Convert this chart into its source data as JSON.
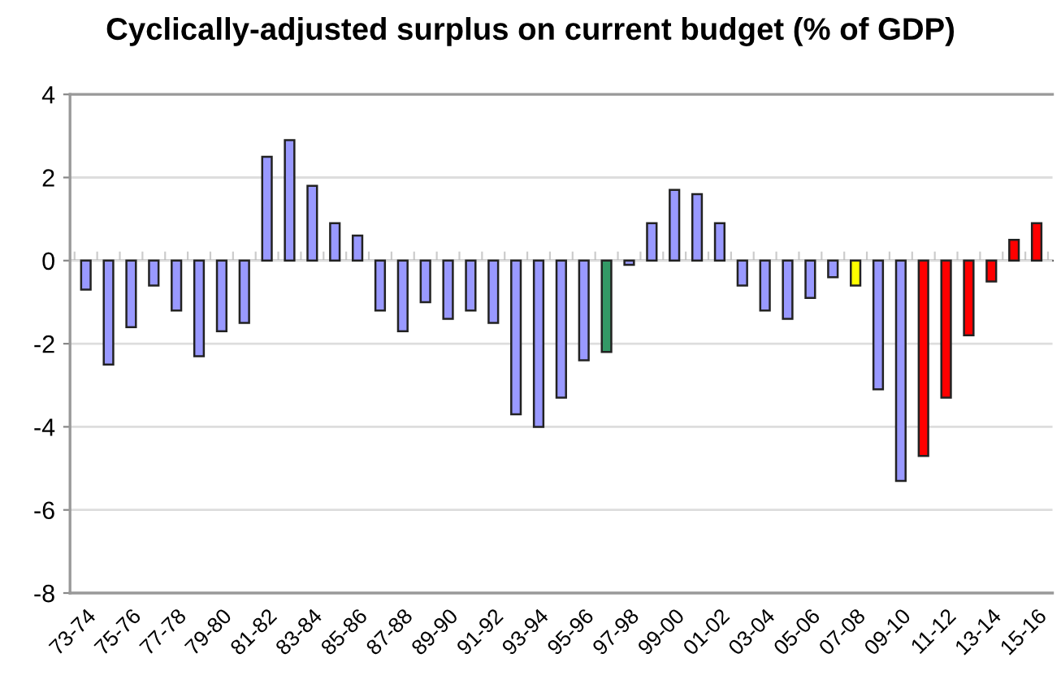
{
  "chart_data": {
    "type": "bar",
    "title": "Cyclically-adjusted surplus on current budget (% of GDP)",
    "categories": [
      "73-74",
      null,
      "75-76",
      null,
      "77-78",
      null,
      "79-80",
      null,
      "81-82",
      null,
      "83-84",
      null,
      "85-86",
      null,
      "87-88",
      null,
      "89-90",
      null,
      "91-92",
      null,
      "93-94",
      null,
      "95-96",
      null,
      "97-98",
      null,
      "99-00",
      null,
      "01-02",
      null,
      "03-04",
      null,
      "05-06",
      null,
      "07-08",
      null,
      "09-10",
      null,
      "11-12",
      null,
      "13-14",
      null,
      "15-16"
    ],
    "values": [
      -0.7,
      -2.5,
      -1.6,
      -0.6,
      -1.2,
      -2.3,
      -1.7,
      -1.5,
      2.5,
      2.9,
      1.8,
      0.9,
      0.6,
      -1.2,
      -1.7,
      -1.0,
      -1.4,
      -1.2,
      -1.5,
      -3.7,
      -4.0,
      -3.3,
      -2.4,
      -2.2,
      -0.1,
      0.9,
      1.7,
      1.6,
      0.9,
      -0.6,
      -1.2,
      -1.4,
      -0.9,
      -0.4,
      -0.6,
      -3.1,
      -5.3,
      -4.7,
      -3.3,
      -1.8,
      -0.5,
      0.5,
      0.9
    ],
    "colors": [
      "#9999ff",
      "#9999ff",
      "#9999ff",
      "#9999ff",
      "#9999ff",
      "#9999ff",
      "#9999ff",
      "#9999ff",
      "#9999ff",
      "#9999ff",
      "#9999ff",
      "#9999ff",
      "#9999ff",
      "#9999ff",
      "#9999ff",
      "#9999ff",
      "#9999ff",
      "#9999ff",
      "#9999ff",
      "#9999ff",
      "#9999ff",
      "#9999ff",
      "#9999ff",
      "#339966",
      "#9999ff",
      "#9999ff",
      "#9999ff",
      "#9999ff",
      "#9999ff",
      "#9999ff",
      "#9999ff",
      "#9999ff",
      "#9999ff",
      "#9999ff",
      "#ffff00",
      "#9999ff",
      "#9999ff",
      "#ff0000",
      "#ff0000",
      "#ff0000",
      "#ff0000",
      "#ff0000",
      "#ff0000"
    ],
    "ylim": [
      -8,
      4
    ],
    "yticks": [
      -8,
      -6,
      -4,
      -2,
      0,
      2,
      4
    ],
    "grid": "y"
  }
}
